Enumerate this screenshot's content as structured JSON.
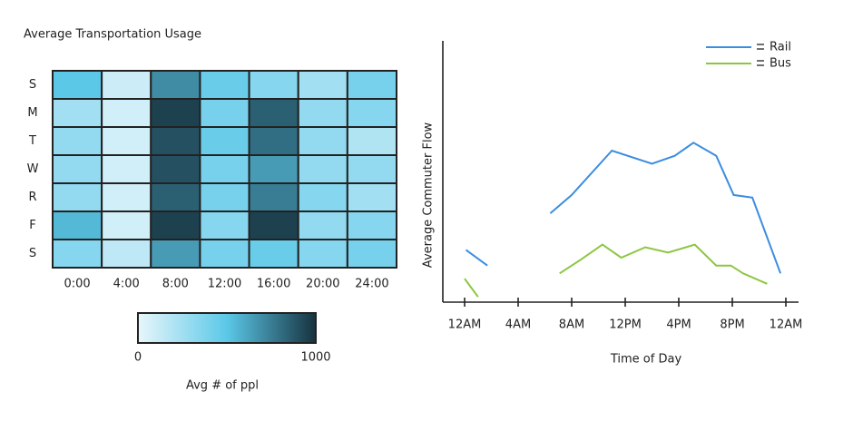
{
  "chart_data": [
    {
      "type": "heatmap",
      "title": "Average Transportation Usage",
      "x": [
        "0:00",
        "4:00",
        "8:00",
        "12:00",
        "16:00",
        "20:00",
        "24:00"
      ],
      "y": [
        "S",
        "M",
        "T",
        "W",
        "R",
        "F",
        "S"
      ],
      "values": [
        [
          500,
          100,
          700,
          450,
          350,
          250,
          400
        ],
        [
          250,
          80,
          950,
          400,
          850,
          300,
          350
        ],
        [
          300,
          80,
          900,
          450,
          800,
          300,
          200
        ],
        [
          300,
          80,
          900,
          400,
          650,
          300,
          300
        ],
        [
          300,
          80,
          850,
          400,
          750,
          350,
          250
        ],
        [
          550,
          80,
          950,
          350,
          950,
          300,
          350
        ],
        [
          350,
          150,
          650,
          400,
          450,
          350,
          400
        ]
      ],
      "vlim": [
        0,
        1000
      ],
      "colors": [
        "#e8f6fb",
        "#5bc8e8",
        "#17323f"
      ],
      "colorbar_ticks": [
        0,
        1000
      ],
      "colorbar_label": "Avg # of ppl"
    },
    {
      "type": "line",
      "xlabel": "Time of Day",
      "ylabel": "Average Commuter Flow",
      "xlim": [
        0,
        24
      ],
      "ylim": [
        0,
        100
      ],
      "xticks": [
        {
          "value": 0,
          "label": "12AM"
        },
        {
          "value": 4,
          "label": "4AM"
        },
        {
          "value": 8,
          "label": "8AM"
        },
        {
          "value": 12,
          "label": "12PM"
        },
        {
          "value": 16,
          "label": "4PM"
        },
        {
          "value": 20,
          "label": "8PM"
        },
        {
          "value": 24,
          "label": "12AM"
        }
      ],
      "legend": "top-right",
      "series": [
        {
          "name": "Rail",
          "color": "#3b8de0",
          "x": [
            0.1,
            1.7,
            null,
            6.4,
            8,
            11,
            14,
            15.7,
            17.1,
            18.8,
            20.1,
            21.5,
            23.6
          ],
          "values": [
            20,
            14,
            null,
            34,
            41,
            58,
            53,
            56,
            61,
            56,
            41,
            40,
            11
          ]
        },
        {
          "name": "Bus",
          "color": "#8cc641",
          "x": [
            0,
            1,
            null,
            7.1,
            8.6,
            10.3,
            11.7,
            13.5,
            15.2,
            17.2,
            18.8,
            19.9,
            20.8,
            22.6
          ],
          "values": [
            9,
            2,
            null,
            11,
            16,
            22,
            17,
            21,
            19,
            22,
            14,
            14,
            11,
            7
          ]
        }
      ]
    }
  ]
}
